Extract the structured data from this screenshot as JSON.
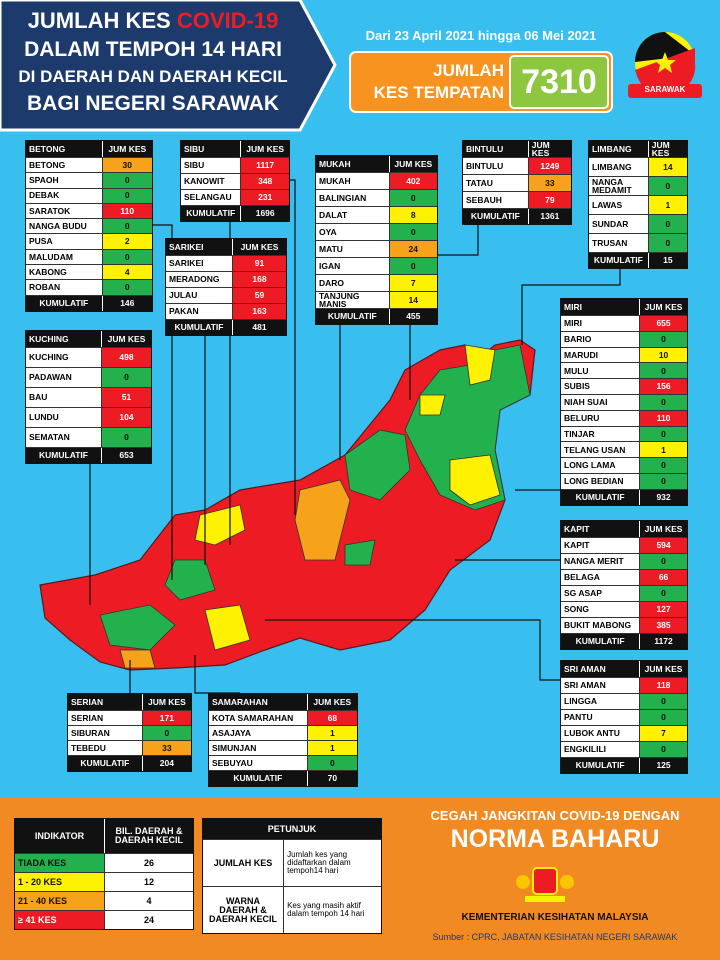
{
  "header": {
    "title_lines": [
      "JUMLAH KES",
      "COVID-19",
      "DALAM TEMPOH 14 HARI",
      "DI DAERAH DAN DAERAH KECIL",
      "BAGI NEGERI SARAWAK"
    ],
    "date_range": "Dari 23 April 2021 hingga 06 Mei 2021",
    "total_label": [
      "JUMLAH",
      "KES TEMPATAN"
    ],
    "total": 7310,
    "badge": "SARAWAK"
  },
  "divisions": [
    {
      "name": "BETONG",
      "column": "JUM KES",
      "rows": [
        {
          "name": "BETONG",
          "cases": 30,
          "color": "#f7a21b"
        },
        {
          "name": "SPAOH",
          "cases": 0,
          "color": "#22b14c"
        },
        {
          "name": "DEBAK",
          "cases": 0,
          "color": "#22b14c"
        },
        {
          "name": "SARATOK",
          "cases": 110,
          "color": "#ed1c24"
        },
        {
          "name": "NANGA BUDU",
          "cases": 0,
          "color": "#22b14c"
        },
        {
          "name": "PUSA",
          "cases": 2,
          "color": "#fff200"
        },
        {
          "name": "MALUDAM",
          "cases": 0,
          "color": "#22b14c"
        },
        {
          "name": "KABONG",
          "cases": 4,
          "color": "#fff200"
        },
        {
          "name": "ROBAN",
          "cases": 0,
          "color": "#22b14c"
        }
      ],
      "total_label": "KUMULATIF",
      "total": 146
    },
    {
      "name": "SIBU",
      "column": "JUM KES",
      "rows": [
        {
          "name": "SIBU",
          "cases": 1117,
          "color": "#ed1c24"
        },
        {
          "name": "KANOWIT",
          "cases": 348,
          "color": "#ed1c24"
        },
        {
          "name": "SELANGAU",
          "cases": 231,
          "color": "#ed1c24"
        }
      ],
      "total_label": "KUMULATIF",
      "total": 1696
    },
    {
      "name": "SARIKEI",
      "column": "JUM KES",
      "rows": [
        {
          "name": "SARIKEI",
          "cases": 91,
          "color": "#ed1c24"
        },
        {
          "name": "MERADONG",
          "cases": 168,
          "color": "#ed1c24"
        },
        {
          "name": "JULAU",
          "cases": 59,
          "color": "#ed1c24"
        },
        {
          "name": "PAKAN",
          "cases": 163,
          "color": "#ed1c24"
        }
      ],
      "total_label": "KUMULATIF",
      "total": 481
    },
    {
      "name": "MUKAH",
      "column": "JUM KES",
      "rows": [
        {
          "name": "MUKAH",
          "cases": 402,
          "color": "#ed1c24"
        },
        {
          "name": "BALINGIAN",
          "cases": 0,
          "color": "#22b14c"
        },
        {
          "name": "DALAT",
          "cases": 8,
          "color": "#fff200"
        },
        {
          "name": "OYA",
          "cases": 0,
          "color": "#22b14c"
        },
        {
          "name": "MATU",
          "cases": 24,
          "color": "#f7a21b"
        },
        {
          "name": "IGAN",
          "cases": 0,
          "color": "#22b14c"
        },
        {
          "name": "DARO",
          "cases": 7,
          "color": "#fff200"
        },
        {
          "name": "TANJUNG MANIS",
          "cases": 14,
          "color": "#fff200"
        }
      ],
      "total_label": "KUMULATIF",
      "total": 455
    },
    {
      "name": "BINTULU",
      "column": "JUM KES",
      "rows": [
        {
          "name": "BINTULU",
          "cases": 1249,
          "color": "#ed1c24"
        },
        {
          "name": "TATAU",
          "cases": 33,
          "color": "#f7a21b"
        },
        {
          "name": "SEBAUH",
          "cases": 79,
          "color": "#ed1c24"
        }
      ],
      "total_label": "KUMULATIF",
      "total": 1361
    },
    {
      "name": "LIMBANG",
      "column": "JUM KES",
      "rows": [
        {
          "name": "LIMBANG",
          "cases": 14,
          "color": "#fff200"
        },
        {
          "name": "NANGA MEDAMIT",
          "cases": 0,
          "color": "#22b14c"
        },
        {
          "name": "LAWAS",
          "cases": 1,
          "color": "#fff200"
        },
        {
          "name": "SUNDAR",
          "cases": 0,
          "color": "#22b14c"
        },
        {
          "name": "TRUSAN",
          "cases": 0,
          "color": "#22b14c"
        }
      ],
      "total_label": "KUMULATIF",
      "total": 15
    },
    {
      "name": "KUCHING",
      "column": "JUM KES",
      "rows": [
        {
          "name": "KUCHING",
          "cases": 498,
          "color": "#ed1c24"
        },
        {
          "name": "PADAWAN",
          "cases": 0,
          "color": "#22b14c"
        },
        {
          "name": "BAU",
          "cases": 51,
          "color": "#ed1c24"
        },
        {
          "name": "LUNDU",
          "cases": 104,
          "color": "#ed1c24"
        },
        {
          "name": "SEMATAN",
          "cases": 0,
          "color": "#22b14c"
        }
      ],
      "total_label": "KUMULATIF",
      "total": 653
    },
    {
      "name": "MIRI",
      "column": "JUM KES",
      "rows": [
        {
          "name": "MIRI",
          "cases": 655,
          "color": "#ed1c24"
        },
        {
          "name": "BARIO",
          "cases": 0,
          "color": "#22b14c"
        },
        {
          "name": "MARUDI",
          "cases": 10,
          "color": "#fff200"
        },
        {
          "name": "MULU",
          "cases": 0,
          "color": "#22b14c"
        },
        {
          "name": "SUBIS",
          "cases": 156,
          "color": "#ed1c24"
        },
        {
          "name": "NIAH SUAI",
          "cases": 0,
          "color": "#22b14c"
        },
        {
          "name": "BELURU",
          "cases": 110,
          "color": "#ed1c24"
        },
        {
          "name": "TINJAR",
          "cases": 0,
          "color": "#22b14c"
        },
        {
          "name": "TELANG USAN",
          "cases": 1,
          "color": "#fff200"
        },
        {
          "name": "LONG LAMA",
          "cases": 0,
          "color": "#22b14c"
        },
        {
          "name": "LONG BEDIAN",
          "cases": 0,
          "color": "#22b14c"
        }
      ],
      "total_label": "KUMULATIF",
      "total": 932
    },
    {
      "name": "KAPIT",
      "column": "JUM KES",
      "rows": [
        {
          "name": "KAPIT",
          "cases": 594,
          "color": "#ed1c24"
        },
        {
          "name": "NANGA MERIT",
          "cases": 0,
          "color": "#22b14c"
        },
        {
          "name": "BELAGA",
          "cases": 66,
          "color": "#ed1c24"
        },
        {
          "name": "SG ASAP",
          "cases": 0,
          "color": "#22b14c"
        },
        {
          "name": "SONG",
          "cases": 127,
          "color": "#ed1c24"
        },
        {
          "name": "BUKIT MABONG",
          "cases": 385,
          "color": "#ed1c24"
        }
      ],
      "total_label": "KUMULATIF",
      "total": 1172
    },
    {
      "name": "SRI AMAN",
      "column": "JUM KES",
      "rows": [
        {
          "name": "SRI AMAN",
          "cases": 118,
          "color": "#ed1c24"
        },
        {
          "name": "LINGGA",
          "cases": 0,
          "color": "#22b14c"
        },
        {
          "name": "PANTU",
          "cases": 0,
          "color": "#22b14c"
        },
        {
          "name": "LUBOK ANTU",
          "cases": 7,
          "color": "#fff200"
        },
        {
          "name": "ENGKILILI",
          "cases": 0,
          "color": "#22b14c"
        }
      ],
      "total_label": "KUMULATIF",
      "total": 125
    },
    {
      "name": "SERIAN",
      "column": "JUM KES",
      "rows": [
        {
          "name": "SERIAN",
          "cases": 171,
          "color": "#ed1c24"
        },
        {
          "name": "SIBURAN",
          "cases": 0,
          "color": "#22b14c"
        },
        {
          "name": "TEBEDU",
          "cases": 33,
          "color": "#f7a21b"
        }
      ],
      "total_label": "KUMULATIF",
      "total": 204
    },
    {
      "name": "SAMARAHAN",
      "column": "JUM KES",
      "rows": [
        {
          "name": "KOTA SAMARAHAN",
          "cases": 68,
          "color": "#ed1c24"
        },
        {
          "name": "ASAJAYA",
          "cases": 1,
          "color": "#fff200"
        },
        {
          "name": "SIMUNJAN",
          "cases": 1,
          "color": "#fff200"
        },
        {
          "name": "SEBUYAU",
          "cases": 0,
          "color": "#22b14c"
        }
      ],
      "total_label": "KUMULATIF",
      "total": 70
    }
  ],
  "legend": {
    "headers": [
      "INDIKATOR",
      "BIL. DAERAH & DAERAH KECIL"
    ],
    "rows": [
      {
        "label": "TIADA KES",
        "count": 26,
        "color": "#22b14c"
      },
      {
        "label": "1 - 20 KES",
        "count": 12,
        "color": "#fff200"
      },
      {
        "label": "21 - 40 KES",
        "count": 4,
        "color": "#f7a21b"
      },
      {
        "label": "≥ 41 KES",
        "count": 24,
        "color": "#ed1c24"
      }
    ]
  },
  "guide": {
    "title": "PETUNJUK",
    "rows": [
      [
        "JUMLAH KES",
        "Jumlah kes yang didaftarkan dalam tempoh14 hari"
      ],
      [
        "WARNA DAERAH & DAERAH KECIL",
        "Kes yang masih aktif dalam tempoh 14 hari"
      ]
    ]
  },
  "footer": {
    "slogan": "CEGAH JANGKITAN COVID-19 DENGAN",
    "headline": "NORMA BAHARU",
    "ministry": "KEMENTERIAN KESIHATAN MALAYSIA",
    "source": "Sumber : CPRC, JABATAN KESIHATAN NEGERI SARAWAK"
  }
}
